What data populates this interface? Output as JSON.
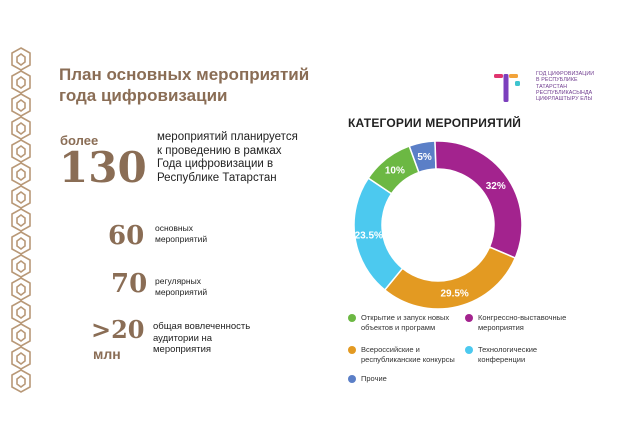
{
  "title": {
    "line1": "План основных мероприятий",
    "line2": "года цифровизации"
  },
  "stats": [
    {
      "prefix": "более",
      "number": "130",
      "desc_lines": [
        "мероприятий планируется",
        "к проведению в рамках",
        "Года цифровизации в",
        "Республике Татарстан"
      ]
    },
    {
      "number": "60",
      "desc_lines": [
        "основных",
        "мероприятий"
      ]
    },
    {
      "number": "70",
      "desc_lines": [
        "регулярных",
        "мероприятий"
      ]
    },
    {
      "number": ">20",
      "suffix": "млн",
      "desc_lines": [
        "общая вовлеченность",
        "аудитории на",
        "мероприятия"
      ]
    }
  ],
  "logo": {
    "lines": [
      "ГОД ЦИФРОВИЗАЦИИ",
      "В РЕСПУБЛИКЕ",
      "ТАТАРСТАН",
      "РЕСПУБЛИКАСЫНДА",
      "ЦИФРЛАШТЫРУ ЕЛЫ"
    ],
    "colors": [
      "#e0356f",
      "#f2a33a",
      "#7c3fbd",
      "#3ec4cf"
    ]
  },
  "chart_data": {
    "type": "pie",
    "title": "КАТЕГОРИИ МЕРОПРИЯТИЙ",
    "donut": true,
    "slices": [
      {
        "label": "Прочие",
        "value": 5,
        "text": "5%",
        "color": "#5b7fc7"
      },
      {
        "label": "Конгрессно-выставочные мероприятия",
        "value": 32,
        "text": "32%",
        "color": "#a3238e"
      },
      {
        "label": "Всероссийские и республиканские конкурсы",
        "value": 29.5,
        "text": "29.5%",
        "color": "#e39a22"
      },
      {
        "label": "Технологические конференции",
        "value": 23.5,
        "text": "23.5%",
        "color": "#4cc9ef"
      },
      {
        "label": "Открытие и запуск новых объектов и программ",
        "value": 10,
        "text": "10%",
        "color": "#6cb843"
      }
    ],
    "legend": [
      {
        "lines": [
          "Открытие и запуск новых",
          "объектов и программ"
        ],
        "color": "#6cb843"
      },
      {
        "lines": [
          "Конгрессно-выставочные",
          "мероприятия"
        ],
        "color": "#a3238e"
      },
      {
        "lines": [
          "Всероссийские и",
          "республиканские конкурсы"
        ],
        "color": "#e39a22"
      },
      {
        "lines": [
          "Технологические",
          "конференции"
        ],
        "color": "#4cc9ef"
      },
      {
        "lines": [
          "Прочие"
        ],
        "color": "#5b7fc7"
      }
    ]
  }
}
